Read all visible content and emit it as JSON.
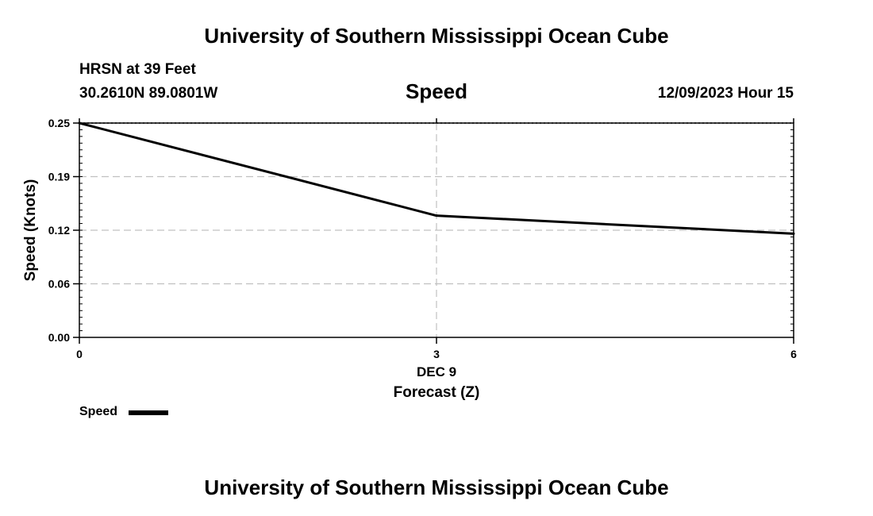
{
  "header": {
    "title": "University of Southern Mississippi Ocean Cube",
    "station": "HRSN at 39 Feet",
    "coordinates": "30.2610N  89.0801W",
    "chart_title": "Speed",
    "datetime": "12/09/2023 Hour 15"
  },
  "footer": {
    "title": "University of Southern Mississippi Ocean Cube"
  },
  "legend": {
    "label": "Speed",
    "placement": "bottom-left"
  },
  "colors": {
    "line": "#000000",
    "grid": "#c0c0c0",
    "background": "#ffffff"
  },
  "chart_data": {
    "type": "line",
    "title": "Speed",
    "xlabel": "Forecast (Z)",
    "xlabel_date": "DEC 9",
    "ylabel": "Speed (Knots)",
    "x": [
      0,
      3,
      6
    ],
    "xticks": [
      "0",
      "3",
      "6"
    ],
    "xlim": [
      0,
      6
    ],
    "ylim": [
      0,
      0.25
    ],
    "yticks": [
      "0.00",
      "0.06",
      "0.12",
      "0.19",
      "0.25"
    ],
    "ytick_values": [
      0.0,
      0.0625,
      0.125,
      0.1875,
      0.25
    ],
    "grid": true,
    "series": [
      {
        "name": "Speed",
        "values": [
          0.25,
          0.142,
          0.121
        ]
      }
    ]
  }
}
